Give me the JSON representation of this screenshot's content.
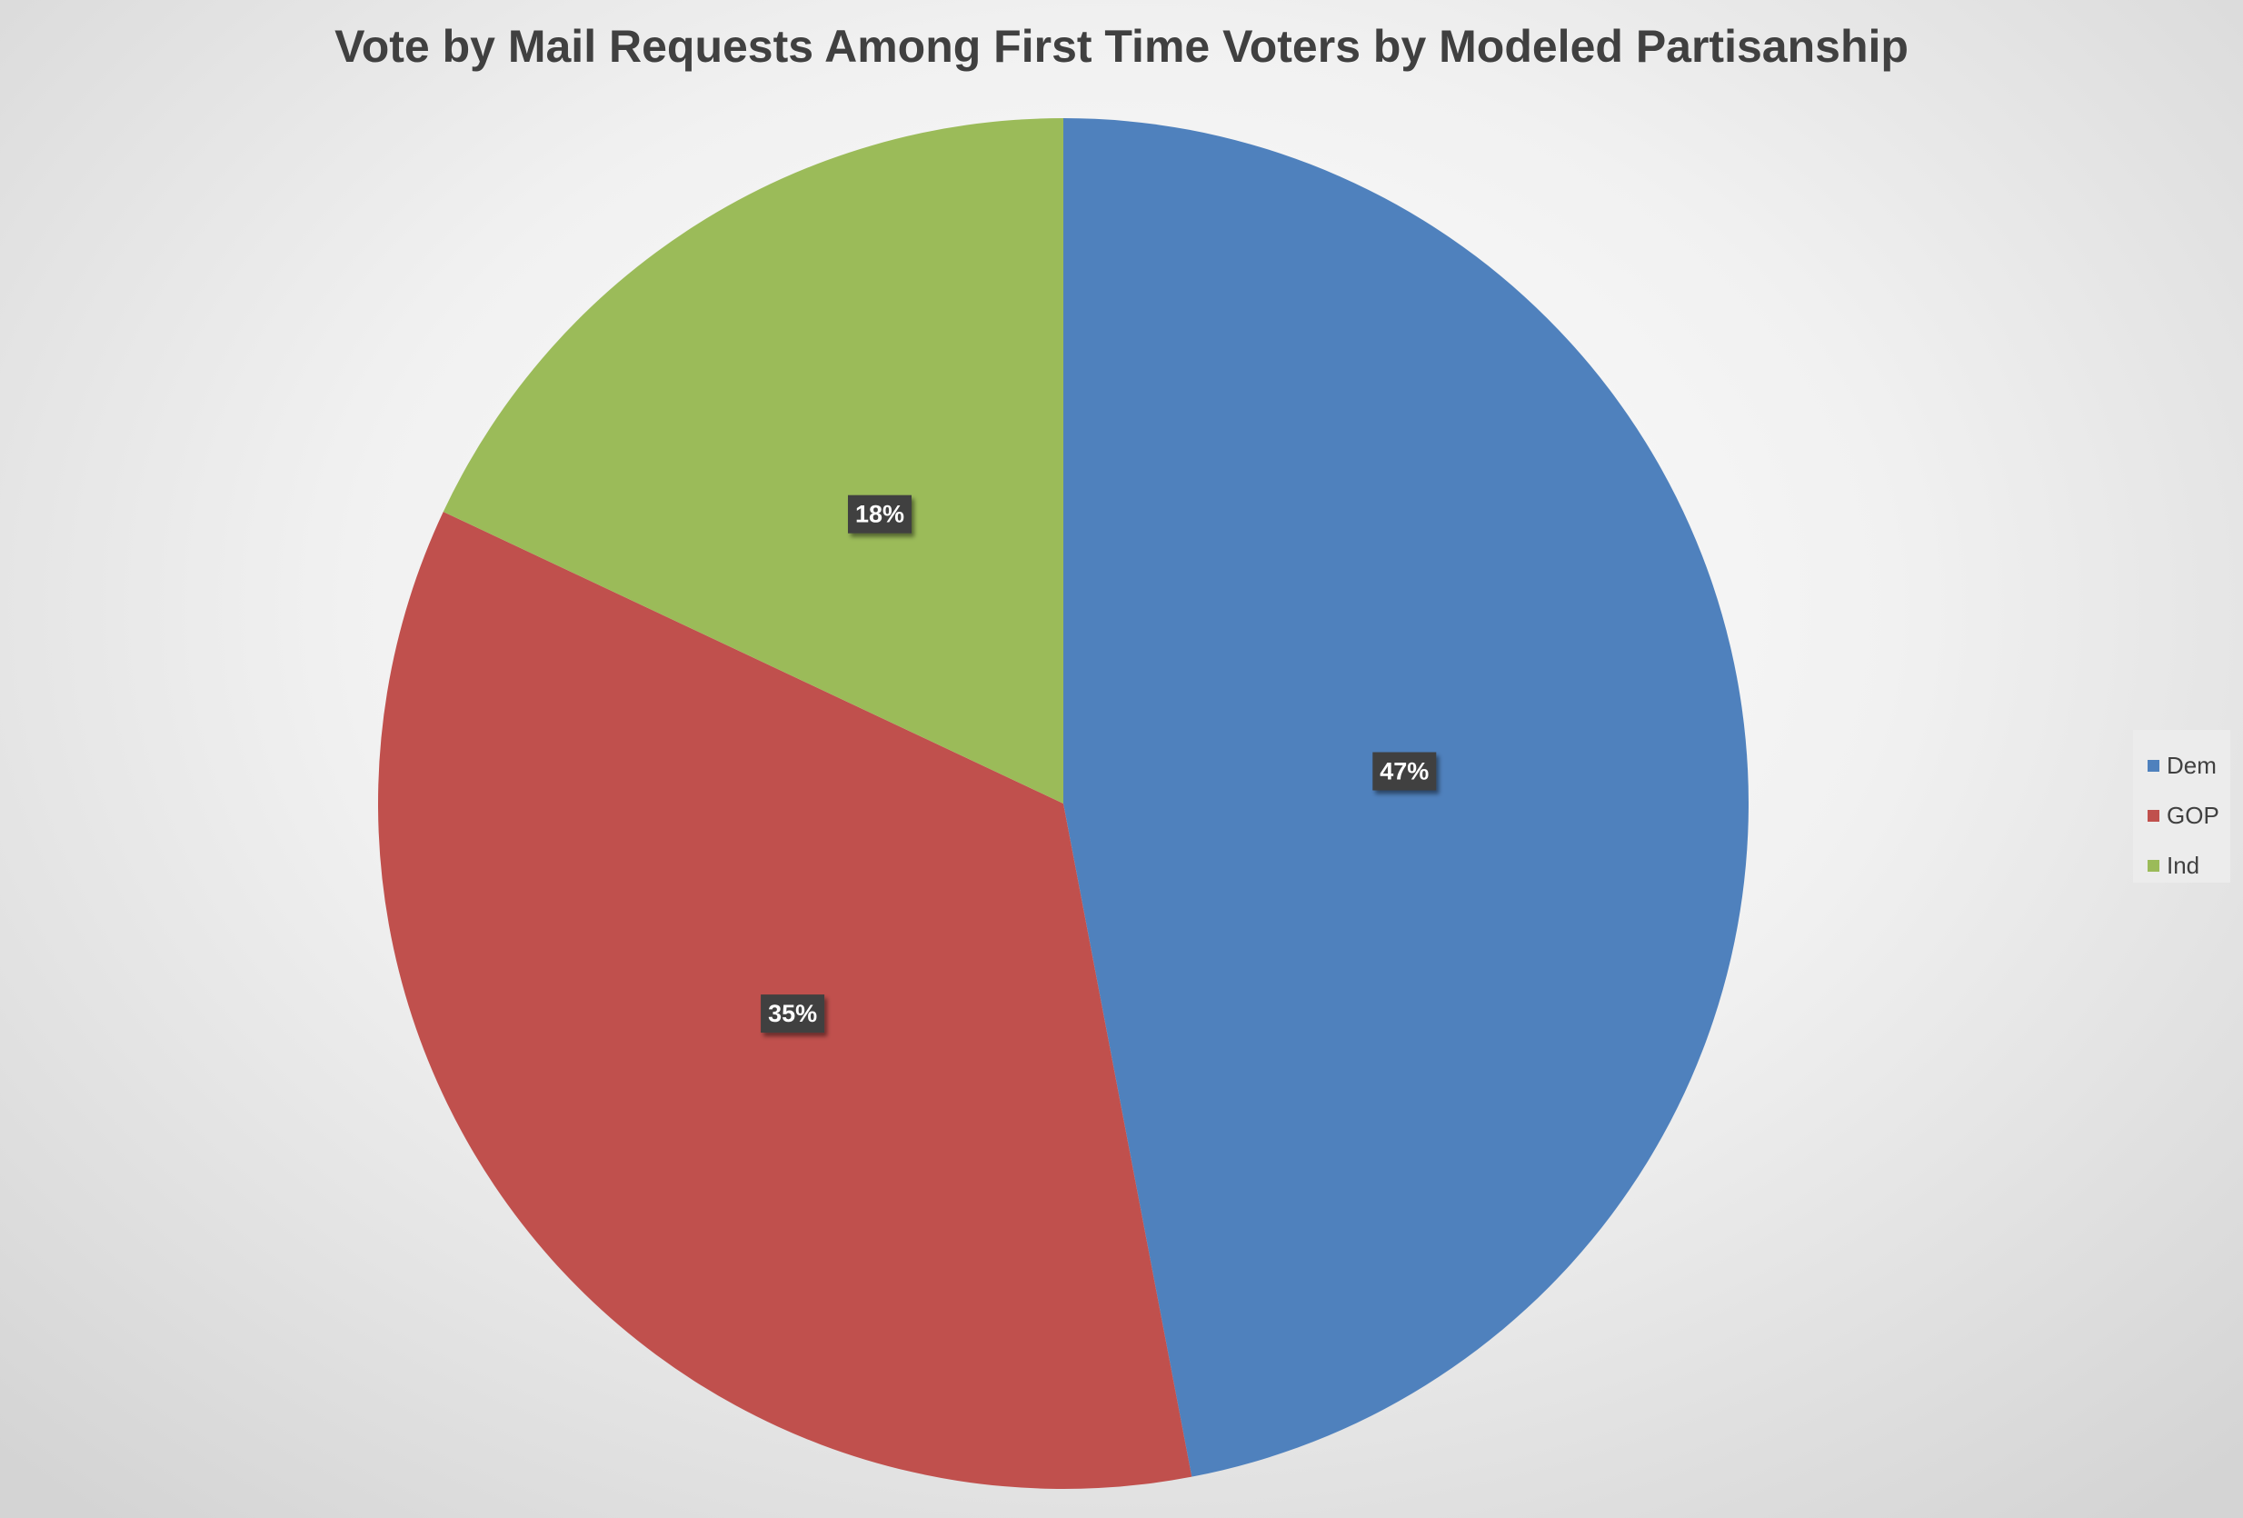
{
  "chart_data": {
    "type": "pie",
    "title": "Vote by Mail Requests Among First Time Voters by Modeled Partisanship",
    "slices": [
      {
        "label": "Dem",
        "value": 47,
        "display": "47%",
        "color": "#4f81bd"
      },
      {
        "label": "GOP",
        "value": 35,
        "display": "35%",
        "color": "#c0504d"
      },
      {
        "label": "Ind",
        "value": 18,
        "display": "18%",
        "color": "#9bbb59"
      }
    ],
    "legend_position": "right",
    "start_angle": "12 o'clock, clockwise"
  }
}
